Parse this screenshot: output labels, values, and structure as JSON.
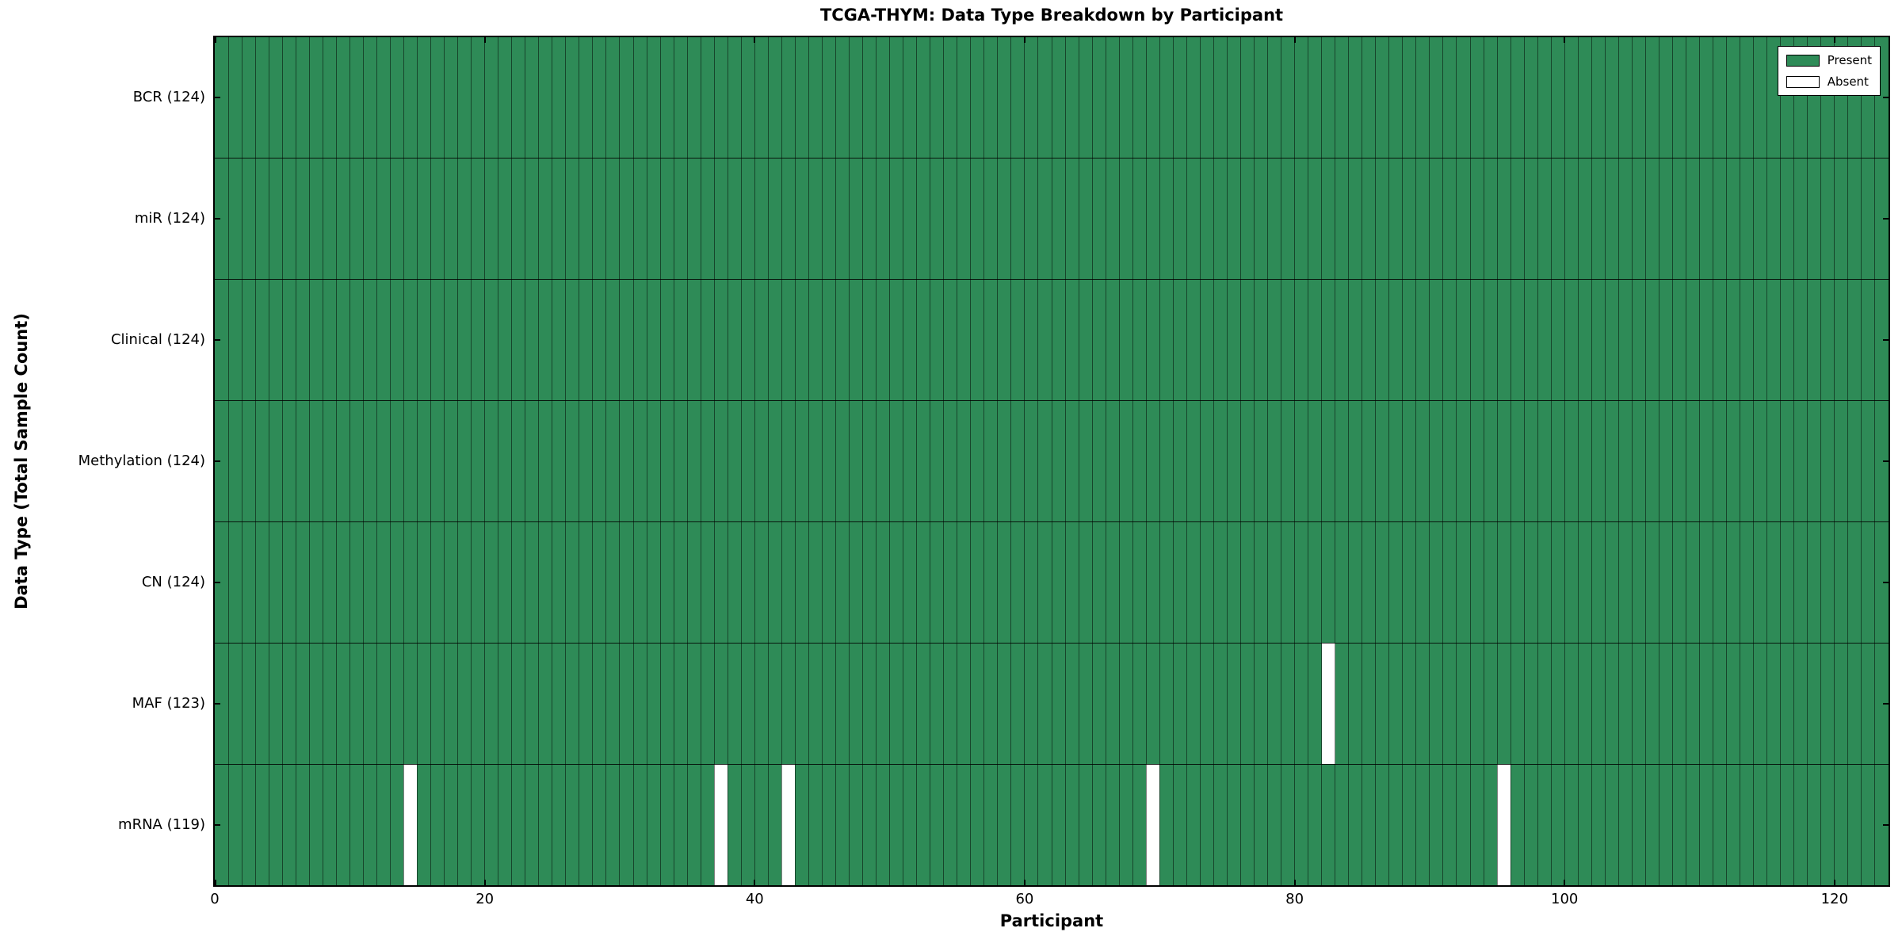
{
  "figure": {
    "background": "#ffffff"
  },
  "chart_data": {
    "type": "heatmap",
    "title": "TCGA-THYM: Data Type Breakdown by Participant",
    "xlabel": "Participant",
    "ylabel": "Data Type (Total Sample Count)",
    "x_range": [
      0,
      124
    ],
    "participants_total": 124,
    "x_ticks": [
      0,
      20,
      40,
      60,
      80,
      100,
      120
    ],
    "categories": [
      "BCR (124)",
      "miR (124)",
      "Clinical (124)",
      "Methylation (124)",
      "CN (124)",
      "MAF (123)",
      "mRNA (119)"
    ],
    "rows": [
      {
        "label": "BCR (124)",
        "data_type": "BCR",
        "total_samples": 124,
        "absent_participants": []
      },
      {
        "label": "miR (124)",
        "data_type": "miR",
        "total_samples": 124,
        "absent_participants": []
      },
      {
        "label": "Clinical (124)",
        "data_type": "Clinical",
        "total_samples": 124,
        "absent_participants": []
      },
      {
        "label": "Methylation (124)",
        "data_type": "Methylation",
        "total_samples": 124,
        "absent_participants": []
      },
      {
        "label": "CN (124)",
        "data_type": "CN",
        "total_samples": 124,
        "absent_participants": []
      },
      {
        "label": "MAF (123)",
        "data_type": "MAF",
        "total_samples": 123,
        "absent_participants": [
          82
        ]
      },
      {
        "label": "mRNA (119)",
        "data_type": "mRNA",
        "total_samples": 119,
        "absent_participants": [
          14,
          37,
          42,
          69,
          95
        ]
      }
    ],
    "legend": {
      "position": "upper right",
      "entries": [
        {
          "label": "Present",
          "color": "#2e8b57"
        },
        {
          "label": "Absent",
          "color": "#ffffff"
        }
      ]
    },
    "colors": {
      "present": "#2e8b57",
      "absent": "#ffffff",
      "cell_edge": "rgba(0,0,0,0.50)",
      "row_edge": "rgba(0,0,0,0.85)",
      "spine": "#000000"
    },
    "grid": "cell-borders"
  }
}
